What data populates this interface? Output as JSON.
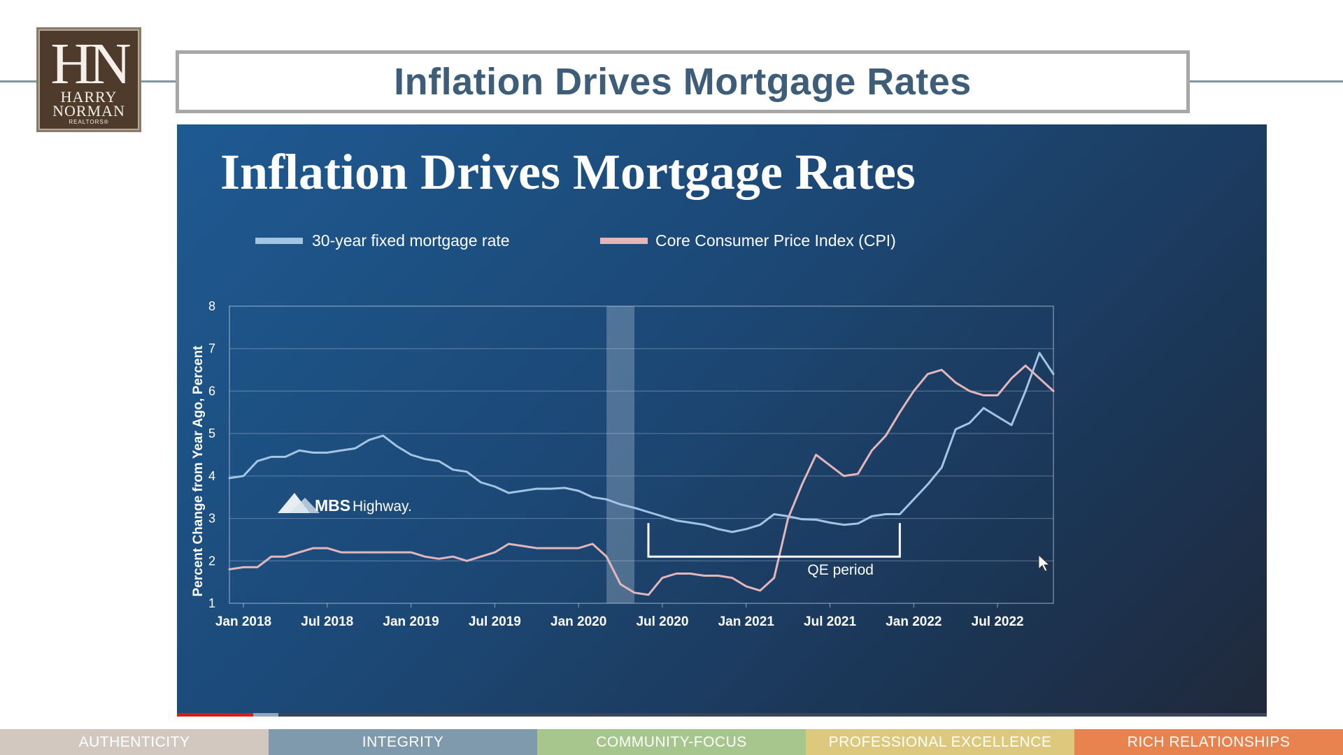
{
  "brand": {
    "monogram": "HN",
    "line1": "HARRY",
    "line2": "NORMAN",
    "sub": "REALTORS®"
  },
  "slide_title": "Inflation Drives Mortgage Rates",
  "video": {
    "progress": 0.07,
    "buffered_to": 0.093,
    "watermark": {
      "brand": "MBS",
      "name": "Highway."
    }
  },
  "chart_data": {
    "type": "line",
    "title": "Inflation Drives Mortgage Rates",
    "ylabel": "Percent Change from Year Ago, Percent",
    "xlabel": "",
    "ylim": [
      1,
      8
    ],
    "yticks": [
      1,
      2,
      3,
      4,
      5,
      6,
      7,
      8
    ],
    "xlim": [
      "2017-12",
      "2022-11"
    ],
    "x_tick_labels": [
      "Jan 2018",
      "Jul 2018",
      "Jan 2019",
      "Jul 2019",
      "Jan 2020",
      "Jul 2020",
      "Jan 2021",
      "Jul 2021",
      "Jan 2022",
      "Jul 2022"
    ],
    "x_tick_dates": [
      "2018-01",
      "2018-07",
      "2019-01",
      "2019-07",
      "2020-01",
      "2020-07",
      "2021-01",
      "2021-07",
      "2022-01",
      "2022-07"
    ],
    "grid": true,
    "legend_position": "top-left",
    "recession_shading": [
      "2020-03",
      "2020-05"
    ],
    "series": [
      {
        "name": "30-year fixed mortgage rate",
        "color": "#a4c4e4",
        "points": [
          [
            "2017-12",
            3.95
          ],
          [
            "2018-01",
            4.0
          ],
          [
            "2018-02",
            4.35
          ],
          [
            "2018-03",
            4.45
          ],
          [
            "2018-04",
            4.45
          ],
          [
            "2018-05",
            4.6
          ],
          [
            "2018-06",
            4.55
          ],
          [
            "2018-07",
            4.55
          ],
          [
            "2018-08",
            4.6
          ],
          [
            "2018-09",
            4.65
          ],
          [
            "2018-10",
            4.85
          ],
          [
            "2018-11",
            4.95
          ],
          [
            "2018-12",
            4.7
          ],
          [
            "2019-01",
            4.5
          ],
          [
            "2019-02",
            4.4
          ],
          [
            "2019-03",
            4.35
          ],
          [
            "2019-04",
            4.15
          ],
          [
            "2019-05",
            4.1
          ],
          [
            "2019-06",
            3.85
          ],
          [
            "2019-07",
            3.75
          ],
          [
            "2019-08",
            3.6
          ],
          [
            "2019-09",
            3.65
          ],
          [
            "2019-10",
            3.7
          ],
          [
            "2019-11",
            3.7
          ],
          [
            "2019-12",
            3.72
          ],
          [
            "2020-01",
            3.65
          ],
          [
            "2020-02",
            3.5
          ],
          [
            "2020-03",
            3.45
          ],
          [
            "2020-04",
            3.33
          ],
          [
            "2020-05",
            3.25
          ],
          [
            "2020-06",
            3.15
          ],
          [
            "2020-07",
            3.05
          ],
          [
            "2020-08",
            2.95
          ],
          [
            "2020-09",
            2.9
          ],
          [
            "2020-10",
            2.85
          ],
          [
            "2020-11",
            2.75
          ],
          [
            "2020-12",
            2.68
          ],
          [
            "2021-01",
            2.75
          ],
          [
            "2021-02",
            2.85
          ],
          [
            "2021-03",
            3.1
          ],
          [
            "2021-04",
            3.05
          ],
          [
            "2021-05",
            2.98
          ],
          [
            "2021-06",
            2.97
          ],
          [
            "2021-07",
            2.9
          ],
          [
            "2021-08",
            2.85
          ],
          [
            "2021-09",
            2.88
          ],
          [
            "2021-10",
            3.05
          ],
          [
            "2021-11",
            3.1
          ],
          [
            "2021-12",
            3.1
          ],
          [
            "2022-01",
            3.45
          ],
          [
            "2022-02",
            3.8
          ],
          [
            "2022-03",
            4.2
          ],
          [
            "2022-04",
            5.1
          ],
          [
            "2022-05",
            5.25
          ],
          [
            "2022-06",
            5.6
          ],
          [
            "2022-07",
            5.4
          ],
          [
            "2022-08",
            5.2
          ],
          [
            "2022-09",
            6.0
          ],
          [
            "2022-10",
            6.9
          ],
          [
            "2022-11",
            6.4
          ]
        ]
      },
      {
        "name": "Core Consumer Price Index (CPI)",
        "color": "#e3b6bb",
        "points": [
          [
            "2017-12",
            1.8
          ],
          [
            "2018-01",
            1.85
          ],
          [
            "2018-02",
            1.85
          ],
          [
            "2018-03",
            2.1
          ],
          [
            "2018-04",
            2.1
          ],
          [
            "2018-05",
            2.2
          ],
          [
            "2018-06",
            2.3
          ],
          [
            "2018-07",
            2.3
          ],
          [
            "2018-08",
            2.2
          ],
          [
            "2018-09",
            2.2
          ],
          [
            "2018-10",
            2.2
          ],
          [
            "2018-11",
            2.2
          ],
          [
            "2018-12",
            2.2
          ],
          [
            "2019-01",
            2.2
          ],
          [
            "2019-02",
            2.1
          ],
          [
            "2019-03",
            2.05
          ],
          [
            "2019-04",
            2.1
          ],
          [
            "2019-05",
            2.0
          ],
          [
            "2019-06",
            2.1
          ],
          [
            "2019-07",
            2.2
          ],
          [
            "2019-08",
            2.4
          ],
          [
            "2019-09",
            2.35
          ],
          [
            "2019-10",
            2.3
          ],
          [
            "2019-11",
            2.3
          ],
          [
            "2019-12",
            2.3
          ],
          [
            "2020-01",
            2.3
          ],
          [
            "2020-02",
            2.4
          ],
          [
            "2020-03",
            2.1
          ],
          [
            "2020-04",
            1.45
          ],
          [
            "2020-05",
            1.25
          ],
          [
            "2020-06",
            1.2
          ],
          [
            "2020-07",
            1.6
          ],
          [
            "2020-08",
            1.7
          ],
          [
            "2020-09",
            1.7
          ],
          [
            "2020-10",
            1.65
          ],
          [
            "2020-11",
            1.65
          ],
          [
            "2020-12",
            1.6
          ],
          [
            "2021-01",
            1.4
          ],
          [
            "2021-02",
            1.3
          ],
          [
            "2021-03",
            1.6
          ],
          [
            "2021-04",
            3.0
          ],
          [
            "2021-05",
            3.8
          ],
          [
            "2021-06",
            4.5
          ],
          [
            "2021-07",
            4.25
          ],
          [
            "2021-08",
            4.0
          ],
          [
            "2021-09",
            4.05
          ],
          [
            "2021-10",
            4.6
          ],
          [
            "2021-11",
            4.95
          ],
          [
            "2021-12",
            5.5
          ],
          [
            "2022-01",
            6.0
          ],
          [
            "2022-02",
            6.4
          ],
          [
            "2022-03",
            6.5
          ],
          [
            "2022-04",
            6.2
          ],
          [
            "2022-05",
            6.0
          ],
          [
            "2022-06",
            5.9
          ],
          [
            "2022-07",
            5.9
          ],
          [
            "2022-08",
            6.3
          ],
          [
            "2022-09",
            6.6
          ],
          [
            "2022-10",
            6.3
          ],
          [
            "2022-11",
            6.0
          ]
        ]
      }
    ],
    "annotations": [
      {
        "text": "QE period",
        "x_start": "2020-06",
        "x_end": "2021-12",
        "y": 2.1
      }
    ]
  },
  "values_bar": [
    {
      "label": "AUTHENTICITY",
      "color": "#d3c8c0"
    },
    {
      "label": "INTEGRITY",
      "color": "#7f9aad"
    },
    {
      "label": "COMMUNITY-FOCUS",
      "color": "#a7c68e"
    },
    {
      "label": "PROFESSIONAL EXCELLENCE",
      "color": "#dcc97d"
    },
    {
      "label": "RICH RELATIONSHIPS",
      "color": "#e8834f"
    }
  ]
}
